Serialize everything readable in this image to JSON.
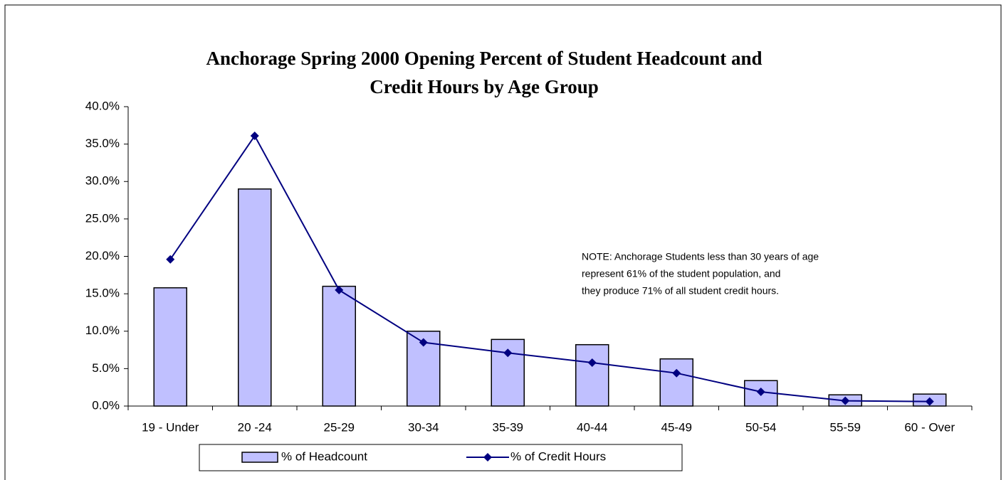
{
  "chart_data": {
    "type": "bar_line",
    "title": [
      "Anchorage Spring 2000 Opening Percent of Student Headcount and",
      "Credit Hours by Age Group"
    ],
    "note": [
      "NOTE: Anchorage Students less than 30 years of age",
      "represent 61% of the student population, and",
      "they produce 71% of all student credit hours."
    ],
    "categories": [
      "19 - Under",
      "20 -24",
      "25-29",
      "30-34",
      "35-39",
      "40-44",
      "45-49",
      "50-54",
      "55-59",
      "60 - Over"
    ],
    "series": [
      {
        "name": "% of Headcount",
        "type": "bar",
        "color": "#c0c0ff",
        "values": [
          15.8,
          29.0,
          16.0,
          10.0,
          8.9,
          8.2,
          6.3,
          3.4,
          1.5,
          1.6
        ]
      },
      {
        "name": "% of Credit Hours",
        "type": "line",
        "color": "#000080",
        "values": [
          19.6,
          36.1,
          15.5,
          8.5,
          7.1,
          5.8,
          4.4,
          1.9,
          0.7,
          0.6
        ]
      }
    ],
    "ylim": [
      0,
      40
    ],
    "yticks": [
      {
        "value": 0,
        "label": "0.0%"
      },
      {
        "value": 5,
        "label": "5.0%"
      },
      {
        "value": 10,
        "label": "10.0%"
      },
      {
        "value": 15,
        "label": "15.0%"
      },
      {
        "value": 20,
        "label": "20.0%"
      },
      {
        "value": 25,
        "label": "25.0%"
      },
      {
        "value": 30,
        "label": "30.0%"
      },
      {
        "value": 35,
        "label": "35.0%"
      },
      {
        "value": 40,
        "label": "40.0%"
      }
    ],
    "legend": "bottom"
  }
}
